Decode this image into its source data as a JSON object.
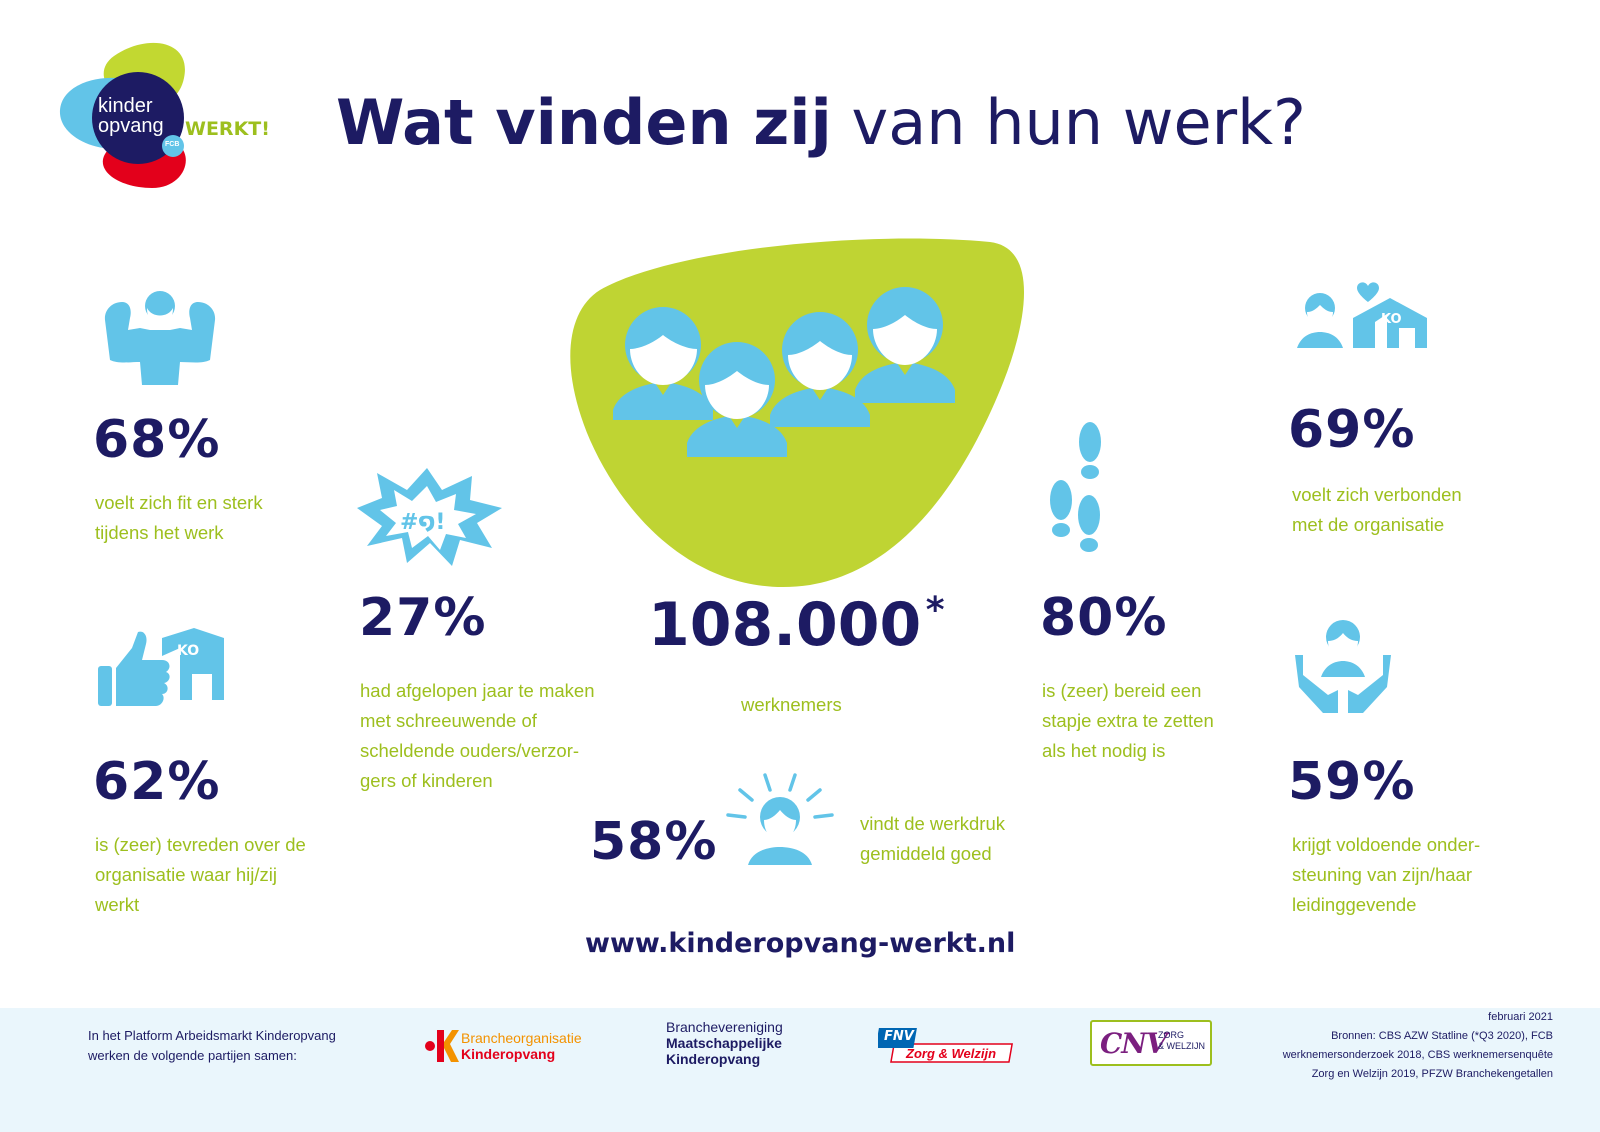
{
  "logo": {
    "line1": "kinder",
    "line2": "opvang",
    "werkt": "WERKT!",
    "badge": "FCB"
  },
  "title": {
    "bold": "Wat vinden zij",
    "light": "van hun werk?"
  },
  "center": {
    "value": "108.000",
    "asterisk": "*",
    "label": "werknemers"
  },
  "stats": [
    {
      "id": "fit",
      "value": "68%",
      "lines": [
        "voelt zich fit en sterk",
        "tijdens het werk"
      ],
      "icon": "strong-person-icon"
    },
    {
      "id": "tevreden",
      "value": "62%",
      "lines": [
        "is (zeer) tevreden over de",
        "organisatie waar hij/zij",
        "werkt"
      ],
      "icon": "thumbs-up-ko-icon"
    },
    {
      "id": "schreeuwend",
      "value": "27%",
      "lines": [
        "had afgelopen jaar te maken",
        "met schreeuwende of",
        "scheldende ouders/verzor-",
        "gers of kinderen"
      ],
      "icon": "swearing-bubble-icon",
      "bubble_text": "#໑!"
    },
    {
      "id": "werkdruk",
      "value": "58%",
      "lines": [
        "vindt de werkdruk",
        "gemiddeld goed"
      ],
      "icon": "radiant-person-icon"
    },
    {
      "id": "stapje",
      "value": "80%",
      "lines": [
        "is (zeer) bereid een",
        "stapje extra te zetten",
        "als het nodig is"
      ],
      "icon": "footsteps-icon"
    },
    {
      "id": "verbonden",
      "value": "69%",
      "lines": [
        "voelt zich verbonden",
        "met de organisatie"
      ],
      "icon": "person-heart-ko-icon"
    },
    {
      "id": "ondersteuning",
      "value": "59%",
      "lines": [
        "krijgt voldoende onder-",
        "steuning van zijn/haar",
        "leidinggevende"
      ],
      "icon": "supporting-hands-icon"
    }
  ],
  "ko_label": "KO",
  "website": "www.kinderopvang-werkt.nl",
  "footer": {
    "intro": [
      "In het Platform Arbeidsmarkt Kinderopvang",
      "werken de volgende partijen samen:"
    ],
    "partners": {
      "bk": {
        "line1": "Brancheorganisatie",
        "line2": "Kinderopvang"
      },
      "bmk": {
        "line1": "Branchevereniging",
        "line2": "Maatschappelijke",
        "line3": "Kinderopvang"
      },
      "fnv": {
        "short": "FNV",
        "name": "Zorg & Welzijn"
      },
      "cnv": {
        "short": "CNV",
        "line1": "ZORG",
        "line2": "& WELZIJN"
      }
    },
    "sources": [
      "februari 2021",
      "Bronnen: CBS AZW Statline (*Q3 2020), FCB",
      "werknemersonderzoek 2018, CBS werknemersenquête",
      "Zorg en Welzijn 2019, PFZW Branchekengetallen"
    ]
  },
  "colors": {
    "navy": "#1d1b63",
    "green": "#9dbf1e",
    "lightblue": "#62c4e8",
    "red": "#e3001b",
    "footer_bg": "#eaf6fc"
  }
}
